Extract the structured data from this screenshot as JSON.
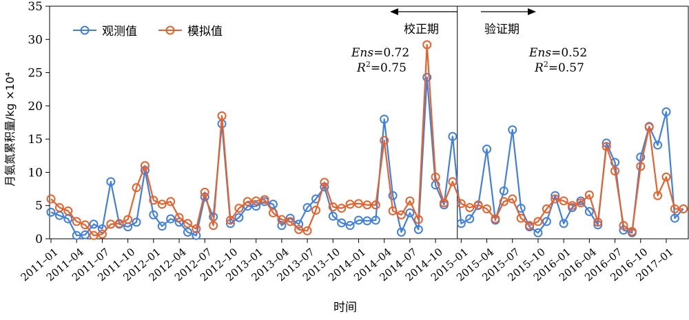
{
  "chart_data": {
    "type": "line",
    "xlabel": "时间",
    "ylabel": "月氨氮累积量/kg ×10⁴",
    "ylim": [
      0,
      35
    ],
    "yticks": [
      0,
      5,
      10,
      15,
      20,
      25,
      30,
      35
    ],
    "x_tick_labels": [
      "2011–01",
      "2011–04",
      "2011–07",
      "2011–10",
      "2012–01",
      "2012–04",
      "2012–07",
      "2012–10",
      "2013–01",
      "2013–04",
      "2013–07",
      "2013–10",
      "2014–01",
      "2014–04",
      "2014–07",
      "2014–10",
      "2015–01",
      "2015–04",
      "2015–07",
      "2015–10",
      "2016–01",
      "2016–04",
      "2016–07",
      "2016–10",
      "2017–01"
    ],
    "x_range": [
      "2011-01",
      "2017-03"
    ],
    "legend": {
      "position": "top-left"
    },
    "series": [
      {
        "name": "观测值",
        "color": "#3f7fe0",
        "values": [
          4.0,
          3.5,
          3.0,
          0.5,
          0.6,
          2.2,
          1.5,
          8.6,
          2.2,
          1.8,
          2.5,
          10.3,
          3.6,
          1.9,
          3.0,
          2.5,
          1.0,
          0.5,
          6.3,
          3.3,
          17.3,
          2.3,
          3.2,
          4.9,
          4.9,
          5.6,
          5.2,
          2.0,
          3.1,
          2.2,
          4.7,
          6.0,
          7.8,
          3.4,
          2.4,
          2.0,
          2.8,
          2.7,
          2.8,
          18.0,
          6.5,
          1.0,
          3.9,
          1.4,
          24.3,
          8.1,
          5.1,
          15.4,
          2.3,
          3.0,
          5.0,
          13.5,
          2.8,
          7.2,
          16.4,
          4.6,
          1.8,
          0.9,
          2.6,
          6.5,
          2.3,
          4.7,
          5.7,
          4.1,
          2.1,
          14.4,
          11.5,
          1.3,
          0.9,
          12.3,
          16.9,
          14.1,
          19.1,
          3.1,
          4.5
        ]
      },
      {
        "name": "模拟值",
        "color": "#e8612a",
        "values": [
          6.0,
          4.7,
          4.2,
          2.6,
          2.1,
          0.5,
          0.7,
          2.2,
          2.3,
          2.9,
          7.7,
          11.0,
          5.8,
          5.2,
          5.6,
          3.2,
          2.3,
          1.5,
          7.0,
          2.0,
          18.5,
          2.8,
          4.6,
          5.6,
          5.7,
          5.9,
          3.9,
          2.9,
          2.6,
          1.4,
          1.2,
          4.3,
          8.5,
          4.8,
          4.6,
          5.2,
          5.3,
          5.1,
          5.1,
          14.8,
          4.2,
          3.6,
          5.7,
          2.9,
          29.2,
          9.3,
          5.4,
          8.6,
          5.3,
          4.7,
          5.1,
          4.5,
          3.0,
          5.6,
          6.0,
          3.1,
          2.0,
          2.6,
          4.5,
          6.0,
          5.7,
          5.0,
          5.4,
          6.6,
          2.5,
          13.9,
          10.2,
          2.0,
          1.1,
          10.9,
          16.8,
          6.5,
          9.3,
          4.5,
          4.5
        ]
      }
    ],
    "divider": {
      "after_index": 47
    },
    "periods": {
      "calibration": {
        "label": "校正期",
        "ens_label": "Ens",
        "ens_value": "=0.72",
        "r2_label": "R",
        "r2_sup": "2",
        "r2_value": "=0.75"
      },
      "validation": {
        "label": "验证期",
        "ens_label": "Ens",
        "ens_value": "=0.52",
        "r2_label": "R",
        "r2_sup": "2",
        "r2_value": "=0.57"
      }
    },
    "grid": false
  }
}
